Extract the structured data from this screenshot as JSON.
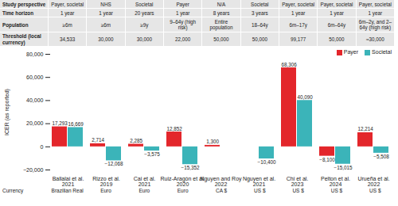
{
  "table": {
    "rows": [
      {
        "label": "Study perspective",
        "cells": [
          "Payer, societal",
          "NHS",
          "Societal",
          "Payer",
          "N/A",
          "Societal",
          "Payer, societal",
          "Payer, societal",
          "Payer, societal"
        ]
      },
      {
        "label": "Time horizon",
        "cells": [
          "1 year",
          "1 year",
          "20 years",
          "1 year",
          "8 years",
          "3 years",
          "1 year",
          "1 year",
          "1 year"
        ]
      },
      {
        "label": "Population",
        "cells": [
          "≥6m",
          "≥6m",
          "≥9y",
          "9–64y (high risk)",
          "Entire population",
          "18–64y",
          "6m–17y",
          "6m–64y",
          "6m–2y, and 2–64y (high risk)"
        ]
      },
      {
        "label": "Threshold (local currency)",
        "cells": [
          "34,533",
          "30,000",
          "30,000",
          "22,000",
          "50,000",
          "50,000",
          "99,177",
          "50,000",
          "≈30,000"
        ]
      }
    ]
  },
  "currency": {
    "label": "Currency",
    "cells": [
      "Brazilian Real",
      "Euro",
      "Euro",
      "Euro",
      "CA $",
      "US $",
      "US $",
      "US $",
      "US $"
    ]
  },
  "chart_data": {
    "type": "bar",
    "categories": [
      "Ballalai et al. 2021",
      "Rizzo et al. 2019",
      "Cai et al. 2021",
      "Ruiz-Aragón et al. 2020",
      "Nguyen and Roy 2022",
      "Nguyen et al. 2021",
      "Chi et al. 2023",
      "Pelton et al. 2024",
      "Urueña et al. 2022"
    ],
    "series": [
      {
        "name": "Payer",
        "color": "#e3262b",
        "values": [
          17293,
          2714,
          2285,
          12852,
          1300,
          null,
          68306,
          -8100,
          12214
        ],
        "value_labels": [
          "17,293",
          "2,714",
          "2,285",
          "12,852",
          "1,300",
          null,
          "68,306",
          "−8,100",
          "12,214"
        ]
      },
      {
        "name": "Societal",
        "color": "#3bb4b9",
        "values": [
          16669,
          -12068,
          -3575,
          -15352,
          null,
          -10400,
          40090,
          -15015,
          -5508
        ],
        "value_labels": [
          "16,669",
          "−12,068",
          "−3,575",
          "−15,352",
          null,
          "−10,400",
          "40,090",
          "−15,015",
          "−5,508"
        ]
      }
    ],
    "ylabel": "ICER (as reported)",
    "ylim": [
      -20000,
      80000
    ],
    "yticks": [
      {
        "value": -20000,
        "label": "−20,000"
      },
      0,
      {
        "value": 20000,
        "label": "20,000"
      },
      {
        "value": 40000,
        "label": "40,000"
      },
      {
        "value": 60000,
        "label": "60,000"
      },
      {
        "value": 80000,
        "label": "80,000"
      }
    ],
    "data_labels": true,
    "legend": "top-right"
  }
}
